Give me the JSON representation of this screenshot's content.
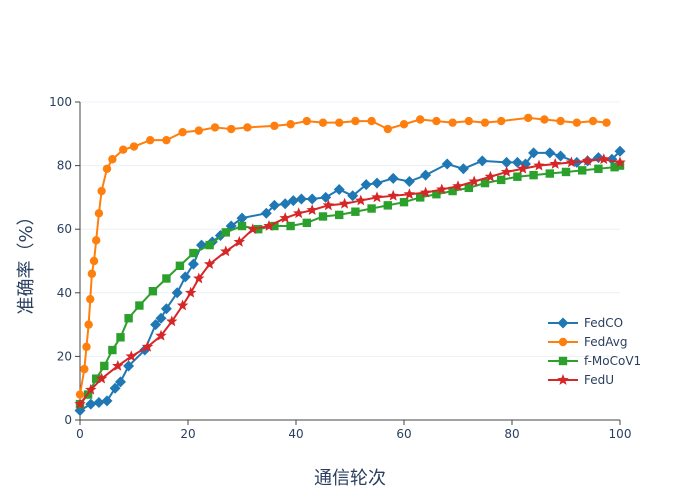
{
  "chart_data": {
    "type": "line",
    "title": "",
    "xlabel": "通信轮次",
    "ylabel": "准确率（%）",
    "xlim": [
      0,
      100
    ],
    "ylim": [
      0,
      100
    ],
    "xticks": [
      0,
      20,
      40,
      60,
      80,
      100
    ],
    "yticks": [
      0,
      20,
      40,
      60,
      80,
      100
    ],
    "grid": true,
    "legend_position": "bottom-right",
    "series": [
      {
        "name": "FedCO",
        "color": "#1f77b4",
        "marker": "diamond",
        "x": [
          0,
          2,
          3.5,
          5,
          6.5,
          7.5,
          9,
          12,
          14,
          15,
          16,
          18,
          19.5,
          21,
          22.5,
          24.5,
          26,
          28,
          30,
          34.5,
          36,
          38,
          39.5,
          41,
          43,
          45.5,
          48,
          50.5,
          53,
          55,
          58,
          61,
          64,
          68,
          71,
          74.5,
          79,
          81,
          82.5,
          84,
          87,
          89,
          92,
          94,
          96,
          98.5,
          100
        ],
        "y": [
          3,
          5,
          5.5,
          6,
          10,
          12,
          17,
          22,
          30,
          32,
          35,
          40,
          45,
          49,
          55,
          56,
          58,
          61,
          63.5,
          65,
          67.5,
          68,
          69,
          69.5,
          69.5,
          70,
          72.5,
          70.5,
          74,
          74.5,
          76,
          75,
          77,
          80.5,
          79,
          81.5,
          81,
          81,
          80.5,
          84,
          84,
          83,
          81,
          81.5,
          82.5,
          82,
          84.5
        ]
      },
      {
        "name": "FedAvg",
        "color": "#ff7f0e",
        "marker": "circle",
        "x": [
          0,
          0.8,
          1.2,
          1.6,
          1.9,
          2.2,
          2.6,
          3,
          3.5,
          4,
          5,
          6,
          8,
          10,
          13,
          16,
          19,
          22,
          25,
          28,
          31,
          36,
          39,
          42,
          45,
          48,
          51,
          54,
          57,
          60,
          63,
          66,
          69,
          72,
          75,
          78,
          83,
          86,
          89,
          92,
          95,
          97.5
        ],
        "y": [
          8,
          16,
          23,
          30,
          38,
          46,
          50,
          56.5,
          65,
          72,
          79,
          82,
          85,
          86,
          88,
          88,
          90.5,
          91,
          92,
          91.5,
          92,
          92.5,
          93,
          94,
          93.5,
          93.5,
          94,
          94,
          91.5,
          93,
          94.5,
          94,
          93.5,
          94,
          93.5,
          94,
          95,
          94.5,
          94,
          93.5,
          94,
          93.5
        ]
      },
      {
        "name": "f-MoCoV1",
        "color": "#2ca02c",
        "marker": "square",
        "x": [
          0,
          1.5,
          3,
          4.5,
          6,
          7.5,
          9,
          11,
          13.5,
          16,
          18.5,
          21,
          24,
          27,
          30,
          33,
          36,
          39,
          42,
          45,
          48,
          51,
          54,
          57,
          60,
          63,
          66,
          69,
          72,
          75,
          78,
          81,
          84,
          87,
          90,
          93,
          96,
          99,
          100
        ],
        "y": [
          5,
          8,
          13,
          17,
          22,
          26,
          32,
          36,
          40.5,
          44.5,
          48.5,
          52.5,
          55,
          59,
          61,
          60,
          61,
          61,
          62,
          64,
          64.5,
          65.5,
          66.5,
          67.5,
          68.5,
          70,
          71,
          72,
          73,
          74.5,
          75.5,
          76.5,
          77,
          77.5,
          78,
          78.5,
          79,
          79.5,
          80
        ]
      },
      {
        "name": "FedU",
        "color": "#d62728",
        "marker": "star",
        "x": [
          0,
          2,
          4,
          7,
          9.5,
          12.5,
          15,
          17,
          19,
          20.5,
          22,
          24,
          27,
          29.5,
          32,
          35,
          38,
          40.5,
          43,
          46,
          49,
          52,
          55,
          58,
          61,
          64,
          67,
          70,
          73,
          76,
          79,
          82,
          85,
          88,
          91,
          94,
          97,
          100
        ],
        "y": [
          5,
          9.5,
          13,
          17,
          20,
          23,
          26.5,
          31,
          36,
          40,
          44.5,
          49,
          53,
          56,
          60,
          61,
          63.5,
          65,
          66,
          67.5,
          68,
          69,
          70,
          70.5,
          71,
          71.5,
          72.5,
          73.5,
          75,
          76.5,
          78,
          79,
          80,
          80.5,
          81,
          81.5,
          82,
          81
        ]
      }
    ]
  }
}
